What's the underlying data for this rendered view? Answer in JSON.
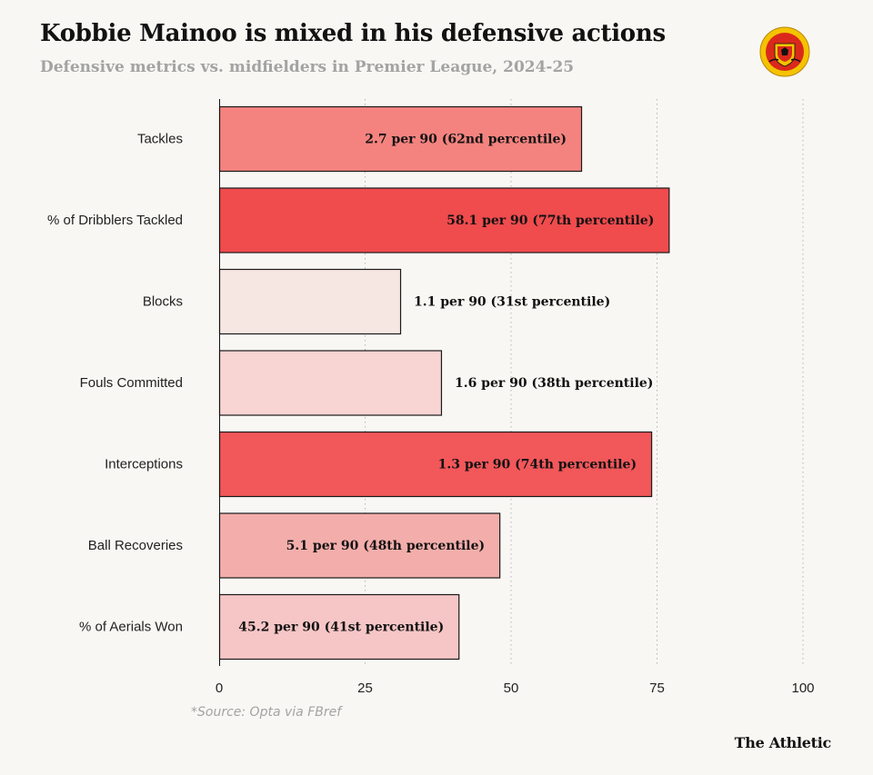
{
  "header": {
    "title": "Kobbie Mainoo is mixed in his defensive actions",
    "subtitle": "Defensive metrics vs. midfielders in Premier League, 2024-25"
  },
  "logo": {
    "name": "manchester-united-crest",
    "text_top": "MANCHESTER",
    "text_bottom": "UNITED"
  },
  "footer": {
    "source": "*Source: Opta via FBref",
    "brand": "The Athletic"
  },
  "colors": {
    "background": "#f8f7f3",
    "grid": "#b5b5b5",
    "bar_stroke": "#1a1a1a"
  },
  "chart_data": {
    "type": "bar",
    "orientation": "horizontal",
    "title": "Kobbie Mainoo is mixed in his defensive actions",
    "subtitle": "Defensive metrics vs. midfielders in Premier League, 2024-25",
    "xlabel": "",
    "ylabel": "",
    "xlim": [
      0,
      100
    ],
    "xticks": [
      0,
      25,
      50,
      75,
      100
    ],
    "grid": "vertical-dotted",
    "categories": [
      "Tackles",
      "% of Dribblers Tackled",
      "Blocks",
      "Fouls Committed",
      "Interceptions",
      "Ball Recoveries",
      "% of Aerials Won"
    ],
    "values": [
      62,
      77,
      31,
      38,
      74,
      48,
      41
    ],
    "data_labels": [
      "2.7 per 90 (62nd percentile)",
      "58.1 per 90 (77th percentile)",
      "1.1 per 90 (31st percentile)",
      "1.6 per 90 (38th percentile)",
      "1.3 per 90 (74th percentile)",
      "5.1 per 90 (48th percentile)",
      "45.2 per 90 (41st percentile)"
    ],
    "label_position": [
      "inside",
      "inside",
      "outside",
      "outside",
      "inside",
      "inside",
      "inside"
    ],
    "bar_colors": [
      "#f4837f",
      "#f04b4d",
      "#f6e7e3",
      "#f8d4d2",
      "#f2575a",
      "#f3aeab",
      "#f6c6c6"
    ]
  }
}
